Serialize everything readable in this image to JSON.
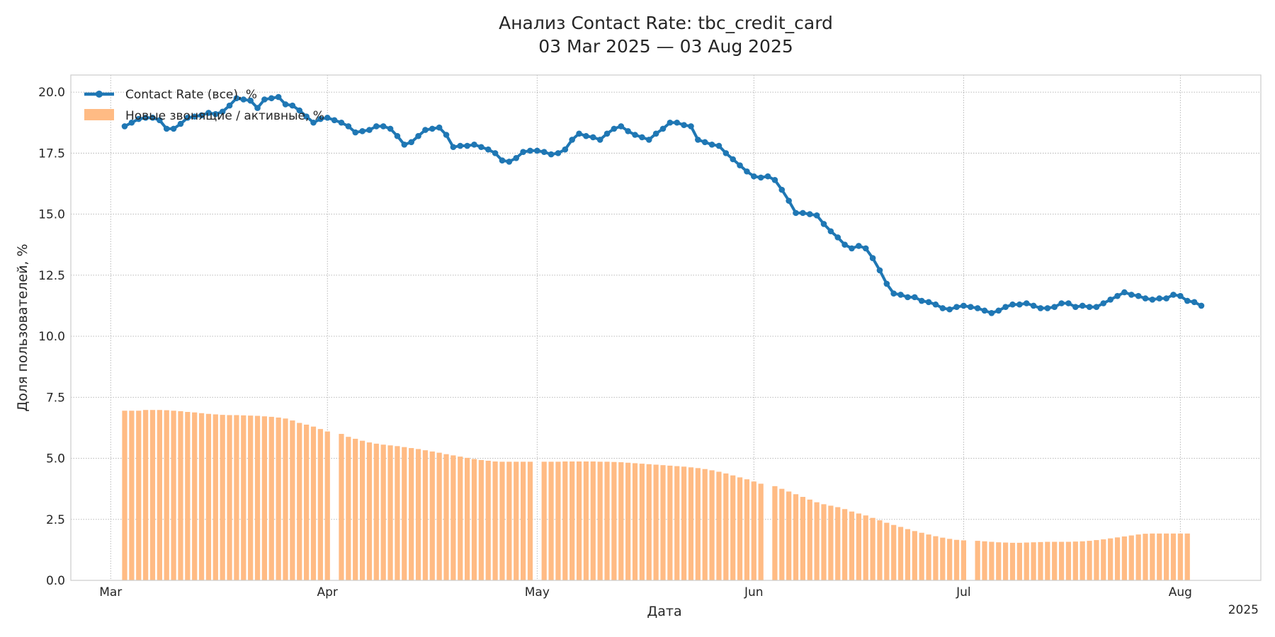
{
  "chart_data": {
    "type": "bar",
    "title": "Анализ Contact Rate: tbc_credit_card",
    "subtitle": "03 Mar 2025 — 03 Aug 2025",
    "xlabel": "Дата",
    "ylabel": "Доля пользователей, %",
    "x_year_label": "2025",
    "ylim": [
      0,
      20.7
    ],
    "yticks": [
      "0.0",
      "2.5",
      "5.0",
      "7.5",
      "10.0",
      "12.5",
      "15.0",
      "17.5",
      "20.0"
    ],
    "xticks": [
      {
        "label": "Mar",
        "date": "2025-03-01"
      },
      {
        "label": "Apr",
        "date": "2025-04-01"
      },
      {
        "label": "May",
        "date": "2025-05-01"
      },
      {
        "label": "Jun",
        "date": "2025-06-01"
      },
      {
        "label": "Jul",
        "date": "2025-07-01"
      },
      {
        "label": "Aug",
        "date": "2025-08-01"
      }
    ],
    "x_start_date": "2025-03-03",
    "grid": true,
    "legend_position": "top-left",
    "colors": {
      "line": "#1f77b4",
      "bars": "#ffbb84"
    },
    "series": [
      {
        "name": "Contact Rate (все), %",
        "kind": "line",
        "values": [
          18.6,
          18.75,
          18.9,
          18.95,
          18.95,
          18.85,
          18.5,
          18.5,
          18.7,
          18.95,
          19.0,
          19.05,
          19.15,
          19.1,
          19.2,
          19.45,
          19.75,
          19.7,
          19.65,
          19.35,
          19.7,
          19.75,
          19.8,
          19.5,
          19.45,
          19.25,
          19.0,
          18.75,
          18.9,
          18.95,
          18.85,
          18.75,
          18.6,
          18.35,
          18.4,
          18.45,
          18.6,
          18.6,
          18.5,
          18.2,
          17.85,
          17.95,
          18.2,
          18.45,
          18.5,
          18.55,
          18.25,
          17.75,
          17.8,
          17.8,
          17.85,
          17.75,
          17.65,
          17.5,
          17.2,
          17.15,
          17.3,
          17.55,
          17.6,
          17.6,
          17.55,
          17.45,
          17.5,
          17.65,
          18.05,
          18.3,
          18.2,
          18.15,
          18.05,
          18.3,
          18.5,
          18.6,
          18.4,
          18.25,
          18.15,
          18.05,
          18.3,
          18.5,
          18.75,
          18.75,
          18.65,
          18.6,
          18.05,
          17.95,
          17.85,
          17.8,
          17.5,
          17.25,
          17.0,
          16.75,
          16.55,
          16.5,
          16.55,
          16.4,
          16.0,
          15.55,
          15.05,
          15.05,
          15.0,
          14.95,
          14.6,
          14.3,
          14.05,
          13.75,
          13.6,
          13.7,
          13.6,
          13.2,
          12.7,
          12.15,
          11.75,
          11.7,
          11.6,
          11.6,
          11.45,
          11.4,
          11.3,
          11.15,
          11.1,
          11.2,
          11.25,
          11.2,
          11.15,
          11.05,
          10.95,
          11.05,
          11.2,
          11.3,
          11.3,
          11.35,
          11.25,
          11.15,
          11.15,
          11.2,
          11.35,
          11.35,
          11.2,
          11.25,
          11.2,
          11.2,
          11.35,
          11.5,
          11.65,
          11.8,
          11.7,
          11.65,
          11.55,
          11.5,
          11.55,
          11.55,
          11.7,
          11.65,
          11.45,
          11.4,
          11.25
        ]
      },
      {
        "name": "Новые звонящие / активные, %",
        "kind": "bar",
        "values": [
          6.95,
          6.95,
          6.95,
          6.98,
          6.98,
          6.98,
          6.97,
          6.95,
          6.93,
          6.9,
          6.88,
          6.85,
          6.82,
          6.8,
          6.78,
          6.77,
          6.77,
          6.76,
          6.75,
          6.74,
          6.72,
          6.7,
          6.67,
          6.63,
          6.55,
          6.45,
          6.38,
          6.3,
          6.2,
          6.1,
          null,
          6.0,
          5.88,
          5.8,
          5.72,
          5.65,
          5.6,
          5.56,
          5.53,
          5.5,
          5.46,
          5.42,
          5.38,
          5.33,
          5.28,
          5.23,
          5.17,
          5.12,
          5.07,
          5.02,
          4.97,
          4.93,
          4.9,
          4.87,
          4.86,
          4.86,
          4.86,
          4.86,
          4.86,
          null,
          4.86,
          4.86,
          4.86,
          4.87,
          4.87,
          4.87,
          4.87,
          4.87,
          4.86,
          4.86,
          4.85,
          4.84,
          4.82,
          4.8,
          4.78,
          4.76,
          4.74,
          4.72,
          4.7,
          4.68,
          4.66,
          4.63,
          4.6,
          4.56,
          4.51,
          4.45,
          4.38,
          4.3,
          4.22,
          4.14,
          4.05,
          3.96,
          null,
          3.86,
          3.75,
          3.64,
          3.53,
          3.42,
          3.31,
          3.2,
          3.12,
          3.06,
          3.0,
          2.92,
          2.82,
          2.74,
          2.66,
          2.56,
          2.46,
          2.36,
          2.27,
          2.19,
          2.1,
          2.02,
          1.95,
          1.88,
          1.81,
          1.75,
          1.7,
          1.66,
          1.64,
          null,
          1.62,
          1.6,
          1.58,
          1.56,
          1.55,
          1.54,
          1.54,
          1.55,
          1.56,
          1.57,
          1.58,
          1.58,
          1.58,
          1.58,
          1.59,
          1.6,
          1.62,
          1.65,
          1.68,
          1.72,
          1.76,
          1.8,
          1.84,
          1.88,
          1.91,
          1.92,
          1.92,
          1.92,
          1.92,
          1.92,
          1.92
        ]
      }
    ]
  }
}
